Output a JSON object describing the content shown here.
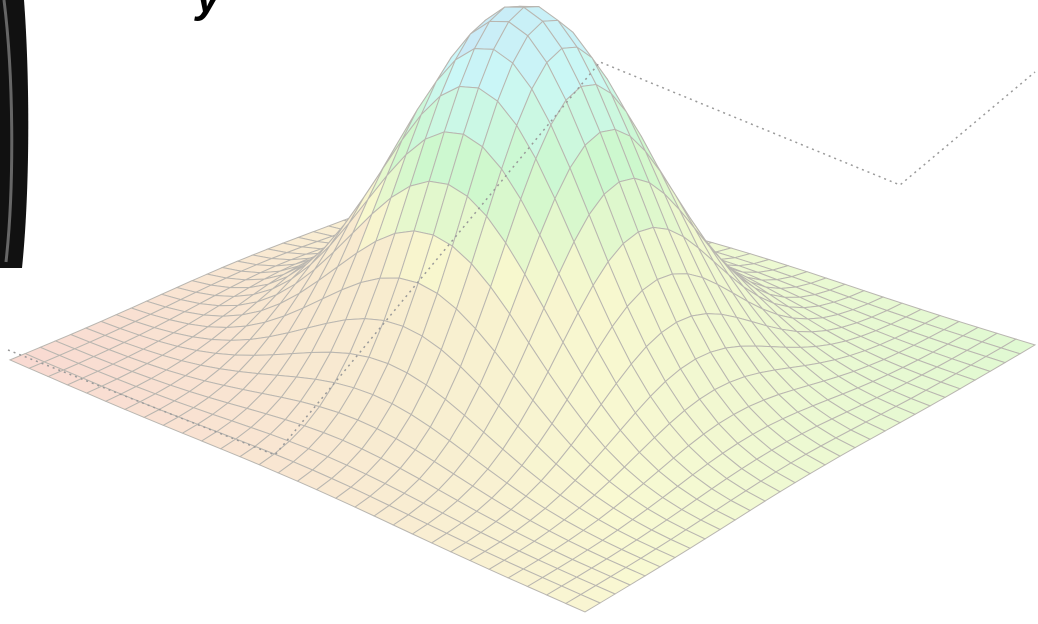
{
  "heading": {
    "fragment": "y"
  }
}
